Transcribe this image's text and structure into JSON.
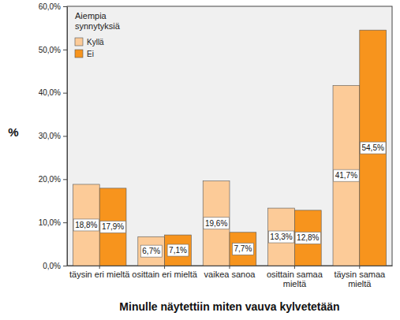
{
  "chart_data": {
    "type": "bar",
    "x_label": "Minulle näytettiin miten vauva kylvetetään",
    "y_label": "%",
    "legend_title": "Aiempia synnytyksiä",
    "legend": "top-left",
    "grid": false,
    "data_labels": true,
    "categories": [
      "täysin eri mieltä",
      "osittain eri mieltä",
      "vaikea sanoa",
      "osittain samaa mieltä",
      "täysin samaa mieltä"
    ],
    "series": [
      {
        "name": "Kyllä",
        "color": "#fccb98",
        "values": [
          18.8,
          6.7,
          19.6,
          13.3,
          41.7
        ],
        "value_labels": [
          "18,8%",
          "6,7%",
          "19,6%",
          "13,3%",
          "41,7%"
        ]
      },
      {
        "name": "Ei",
        "color": "#f7941d",
        "values": [
          17.9,
          7.1,
          7.7,
          12.8,
          54.5
        ],
        "value_labels": [
          "17,9%",
          "7,1%",
          "7,7%",
          "12,8%",
          "54,5%"
        ]
      }
    ],
    "ylim": [
      0,
      60
    ],
    "yticks": [
      {
        "value": 0,
        "label": "0,0%"
      },
      {
        "value": 10,
        "label": "10,0%"
      },
      {
        "value": 20,
        "label": "20,0%"
      },
      {
        "value": 30,
        "label": "30,0%"
      },
      {
        "value": 40,
        "label": "40,0%"
      },
      {
        "value": 50,
        "label": "50,0%"
      },
      {
        "value": 60,
        "label": "60,0%"
      }
    ]
  }
}
